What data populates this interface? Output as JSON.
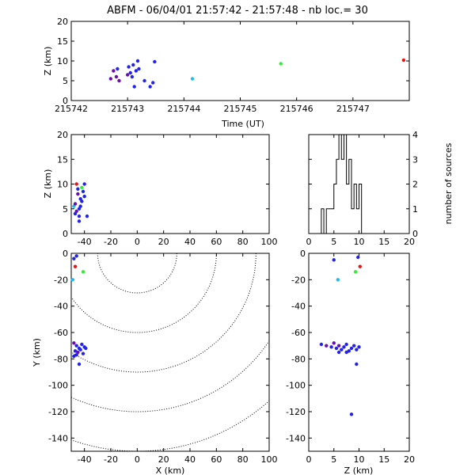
{
  "title": "ABFM - 06/04/01 21:57:42 - 21:57:48 - nb loc.=      30",
  "colors": {
    "purple": "#6a0dad",
    "blue": "#2222ee",
    "cyan": "#22bbee",
    "green": "#33ee33",
    "red": "#ee1111"
  },
  "chart_data": [
    {
      "id": "time-z",
      "type": "scatter",
      "xlabel": "Time (UT)",
      "ylabel": "Z (km)",
      "xlim": [
        215742,
        215748
      ],
      "ylim": [
        0,
        20
      ],
      "xticks": [
        215742,
        215743,
        215744,
        215745,
        215746,
        215747
      ],
      "xtick_labels": [
        "215742",
        "215743",
        "215744",
        "215745",
        "215746",
        "215747"
      ],
      "yticks": [
        0,
        5,
        10,
        15,
        20
      ],
      "ytick_labels": [
        "0",
        "5",
        "10",
        "15",
        "20"
      ],
      "points": [
        {
          "x": 215742.7,
          "y": 5.5,
          "c": "purple"
        },
        {
          "x": 215742.75,
          "y": 7.5,
          "c": "purple"
        },
        {
          "x": 215742.8,
          "y": 6.0,
          "c": "purple"
        },
        {
          "x": 215742.85,
          "y": 5.0,
          "c": "purple"
        },
        {
          "x": 215742.82,
          "y": 8.0,
          "c": "blue"
        },
        {
          "x": 215743.0,
          "y": 6.5,
          "c": "purple"
        },
        {
          "x": 215743.02,
          "y": 8.5,
          "c": "blue"
        },
        {
          "x": 215743.05,
          "y": 7.0,
          "c": "blue"
        },
        {
          "x": 215743.08,
          "y": 6.0,
          "c": "blue"
        },
        {
          "x": 215743.1,
          "y": 9.0,
          "c": "blue"
        },
        {
          "x": 215743.15,
          "y": 7.5,
          "c": "blue"
        },
        {
          "x": 215743.18,
          "y": 10.0,
          "c": "blue"
        },
        {
          "x": 215743.12,
          "y": 3.5,
          "c": "blue"
        },
        {
          "x": 215743.2,
          "y": 8.0,
          "c": "blue"
        },
        {
          "x": 215743.3,
          "y": 5.0,
          "c": "blue"
        },
        {
          "x": 215743.4,
          "y": 3.5,
          "c": "blue"
        },
        {
          "x": 215743.45,
          "y": 4.5,
          "c": "blue"
        },
        {
          "x": 215743.48,
          "y": 9.8,
          "c": "blue"
        },
        {
          "x": 215744.15,
          "y": 5.5,
          "c": "cyan"
        },
        {
          "x": 215745.72,
          "y": 9.3,
          "c": "green"
        },
        {
          "x": 215747.9,
          "y": 10.2,
          "c": "red"
        }
      ]
    },
    {
      "id": "x-z",
      "type": "scatter",
      "xlabel": "",
      "ylabel": "Z (km)",
      "xlim": [
        -50,
        100
      ],
      "ylim": [
        0,
        20
      ],
      "xticks": [
        -40,
        -20,
        0,
        20,
        40,
        60,
        80,
        100
      ],
      "xtick_labels": [
        "-40",
        "-20",
        "0",
        "20",
        "40",
        "60",
        "80",
        "100"
      ],
      "yticks": [
        0,
        5,
        10,
        15,
        20
      ],
      "ytick_labels": [
        "0",
        "5",
        "10",
        "15",
        "20"
      ],
      "points": [
        {
          "x": -48,
          "y": 5.5,
          "c": "cyan"
        },
        {
          "x": -47,
          "y": 6.0,
          "c": "purple"
        },
        {
          "x": -46,
          "y": 4.5,
          "c": "purple"
        },
        {
          "x": -45,
          "y": 8.0,
          "c": "purple"
        },
        {
          "x": -44,
          "y": 5.0,
          "c": "blue"
        },
        {
          "x": -43,
          "y": 7.0,
          "c": "blue"
        },
        {
          "x": -45,
          "y": 9.0,
          "c": "blue"
        },
        {
          "x": -42,
          "y": 6.5,
          "c": "blue"
        },
        {
          "x": -44,
          "y": 3.5,
          "c": "blue"
        },
        {
          "x": -41,
          "y": 8.5,
          "c": "blue"
        },
        {
          "x": -40,
          "y": 7.5,
          "c": "blue"
        },
        {
          "x": -46,
          "y": 10.0,
          "c": "red"
        },
        {
          "x": -42,
          "y": 9.3,
          "c": "green"
        },
        {
          "x": -40,
          "y": 10.0,
          "c": "blue"
        },
        {
          "x": -44,
          "y": 2.5,
          "c": "blue"
        },
        {
          "x": -38,
          "y": 3.5,
          "c": "blue"
        },
        {
          "x": -47,
          "y": 4.0,
          "c": "blue"
        },
        {
          "x": -43,
          "y": 5.5,
          "c": "blue"
        }
      ]
    },
    {
      "id": "histogram",
      "type": "bar",
      "xlabel": "",
      "ylabel": "number of sources",
      "xlim": [
        0,
        20
      ],
      "ylim": [
        0,
        4
      ],
      "xticks": [
        0,
        5,
        10,
        15,
        20
      ],
      "xtick_labels": [
        "0",
        "5",
        "10",
        "15",
        "20"
      ],
      "yticks": [
        0,
        1,
        2,
        3,
        4
      ],
      "ytick_labels": [
        "0",
        "1",
        "2",
        "3",
        "4"
      ],
      "bin_width": 0.5,
      "bins": [
        {
          "x": 2.0,
          "v": 0
        },
        {
          "x": 2.5,
          "v": 1
        },
        {
          "x": 3.0,
          "v": 0
        },
        {
          "x": 3.5,
          "v": 1
        },
        {
          "x": 4.0,
          "v": 1
        },
        {
          "x": 4.5,
          "v": 1
        },
        {
          "x": 5.0,
          "v": 2
        },
        {
          "x": 5.5,
          "v": 3
        },
        {
          "x": 6.0,
          "v": 4
        },
        {
          "x": 6.5,
          "v": 3
        },
        {
          "x": 7.0,
          "v": 4
        },
        {
          "x": 7.5,
          "v": 2
        },
        {
          "x": 8.0,
          "v": 3
        },
        {
          "x": 8.5,
          "v": 1
        },
        {
          "x": 9.0,
          "v": 2
        },
        {
          "x": 9.5,
          "v": 1
        },
        {
          "x": 10.0,
          "v": 2
        },
        {
          "x": 10.5,
          "v": 0
        }
      ]
    },
    {
      "id": "x-y",
      "type": "scatter",
      "xlabel": "X (km)",
      "ylabel": "Y (km)",
      "xlim": [
        -50,
        100
      ],
      "ylim": [
        -150,
        0
      ],
      "xticks": [
        -40,
        -20,
        0,
        20,
        40,
        60,
        80,
        100
      ],
      "xtick_labels": [
        "-40",
        "-20",
        "0",
        "20",
        "40",
        "60",
        "80",
        "100"
      ],
      "yticks": [
        -140,
        -120,
        -100,
        -80,
        -60,
        -40,
        -20,
        0
      ],
      "ytick_labels": [
        "-140",
        "-120",
        "-100",
        "-80",
        "-60",
        "-40",
        "-20",
        "0"
      ],
      "contour_radii": [
        30,
        60,
        90,
        120,
        150
      ],
      "points": [
        {
          "x": -48,
          "y": -4,
          "c": "blue"
        },
        {
          "x": -46,
          "y": -2,
          "c": "blue"
        },
        {
          "x": -47,
          "y": -10,
          "c": "red"
        },
        {
          "x": -41,
          "y": -14,
          "c": "green"
        },
        {
          "x": -49,
          "y": -20,
          "c": "cyan"
        },
        {
          "x": -48,
          "y": -68,
          "c": "purple"
        },
        {
          "x": -46,
          "y": -70,
          "c": "blue"
        },
        {
          "x": -44,
          "y": -72,
          "c": "blue"
        },
        {
          "x": -42,
          "y": -69,
          "c": "blue"
        },
        {
          "x": -40,
          "y": -71,
          "c": "blue"
        },
        {
          "x": -47,
          "y": -74,
          "c": "blue"
        },
        {
          "x": -45,
          "y": -75,
          "c": "purple"
        },
        {
          "x": -43,
          "y": -73,
          "c": "blue"
        },
        {
          "x": -41,
          "y": -76,
          "c": "blue"
        },
        {
          "x": -39,
          "y": -72,
          "c": "blue"
        },
        {
          "x": -44,
          "y": -84,
          "c": "blue"
        },
        {
          "x": -48,
          "y": -78,
          "c": "blue"
        },
        {
          "x": -46,
          "y": -77,
          "c": "blue"
        }
      ]
    },
    {
      "id": "z-y",
      "type": "scatter",
      "xlabel": "Z (km)",
      "ylabel": "",
      "xlim": [
        0,
        20
      ],
      "ylim": [
        -150,
        0
      ],
      "xticks": [
        0,
        5,
        10,
        15,
        20
      ],
      "xtick_labels": [
        "0",
        "5",
        "10",
        "15",
        "20"
      ],
      "yticks": [
        -140,
        -120,
        -100,
        -80,
        -60,
        -40,
        -20,
        0
      ],
      "ytick_labels": [
        "-140",
        "-120",
        "-100",
        "-80",
        "-60",
        "-40",
        "-20",
        "0"
      ],
      "points": [
        {
          "x": 5.0,
          "y": -5,
          "c": "blue"
        },
        {
          "x": 9.8,
          "y": -3,
          "c": "blue"
        },
        {
          "x": 10.2,
          "y": -10,
          "c": "red"
        },
        {
          "x": 9.3,
          "y": -14,
          "c": "green"
        },
        {
          "x": 5.8,
          "y": -20,
          "c": "cyan"
        },
        {
          "x": 2.5,
          "y": -69,
          "c": "blue"
        },
        {
          "x": 3.5,
          "y": -70,
          "c": "purple"
        },
        {
          "x": 4.5,
          "y": -71,
          "c": "blue"
        },
        {
          "x": 5.0,
          "y": -68,
          "c": "purple"
        },
        {
          "x": 5.5,
          "y": -72,
          "c": "blue"
        },
        {
          "x": 6.0,
          "y": -70,
          "c": "purple"
        },
        {
          "x": 6.5,
          "y": -73,
          "c": "blue"
        },
        {
          "x": 7.0,
          "y": -71,
          "c": "blue"
        },
        {
          "x": 7.5,
          "y": -69,
          "c": "blue"
        },
        {
          "x": 8.0,
          "y": -74,
          "c": "blue"
        },
        {
          "x": 8.5,
          "y": -72,
          "c": "blue"
        },
        {
          "x": 9.0,
          "y": -70,
          "c": "blue"
        },
        {
          "x": 9.5,
          "y": -73,
          "c": "blue"
        },
        {
          "x": 10.0,
          "y": -71,
          "c": "blue"
        },
        {
          "x": 7.5,
          "y": -75,
          "c": "blue"
        },
        {
          "x": 6.0,
          "y": -75,
          "c": "blue"
        },
        {
          "x": 9.5,
          "y": -84,
          "c": "blue"
        },
        {
          "x": 8.5,
          "y": -122,
          "c": "blue"
        }
      ]
    }
  ]
}
